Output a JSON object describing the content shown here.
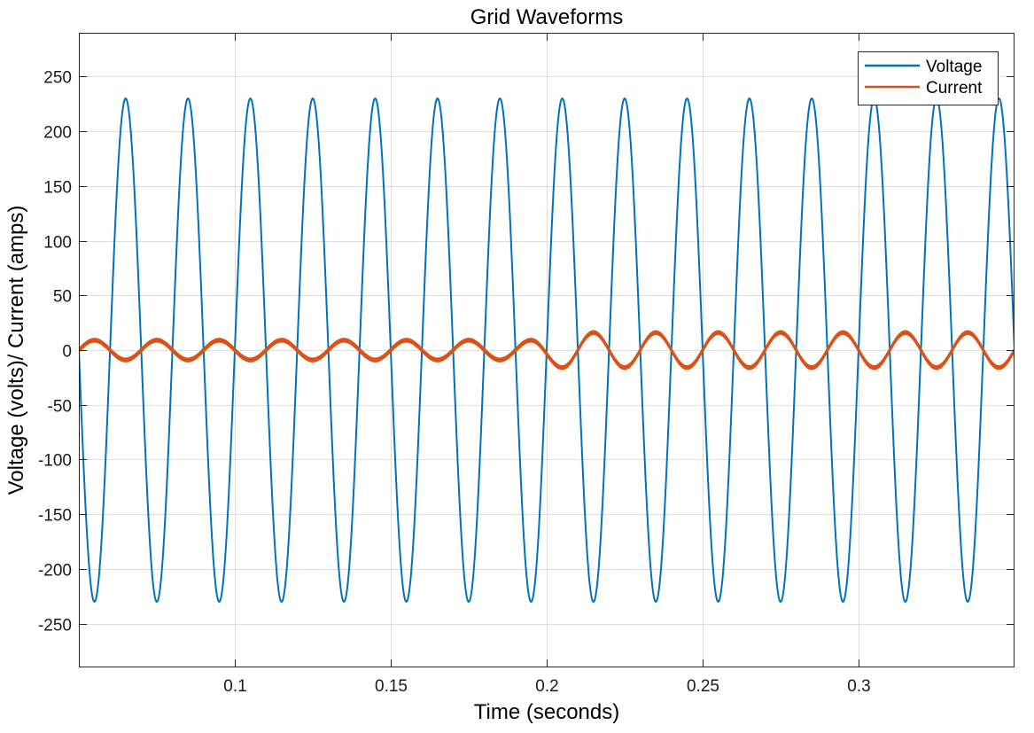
{
  "chart_data": {
    "type": "line",
    "title": "Grid Waveforms",
    "xlabel": "Time (seconds)",
    "ylabel": "Voltage (volts)/ Current (amps)",
    "xlim": [
      0.05,
      0.35
    ],
    "ylim": [
      -290,
      290
    ],
    "xticks": [
      0.1,
      0.15,
      0.2,
      0.25,
      0.3
    ],
    "xtick_labels": [
      "0.1",
      "0.15",
      "0.2",
      "0.25",
      "0.3"
    ],
    "yticks": [
      250,
      200,
      150,
      100,
      50,
      0,
      -50,
      -100,
      -150,
      -200,
      -250
    ],
    "ytick_labels": [
      "250",
      "200",
      "150",
      "100",
      "50",
      "0",
      "-50",
      "-100",
      "-150",
      "-200",
      "-250"
    ],
    "grid": true,
    "legend_position": "top-right",
    "series": [
      {
        "name": "Voltage",
        "color": "#0072BD",
        "frequency_hz": 50,
        "peaks": [
          {
            "x": 0.065,
            "y": 230
          },
          {
            "x": 0.085,
            "y": 230
          },
          {
            "x": 0.105,
            "y": 230
          },
          {
            "x": 0.125,
            "y": 230
          },
          {
            "x": 0.145,
            "y": 230
          },
          {
            "x": 0.165,
            "y": 230
          },
          {
            "x": 0.185,
            "y": 230
          },
          {
            "x": 0.205,
            "y": 230
          },
          {
            "x": 0.225,
            "y": 230
          },
          {
            "x": 0.245,
            "y": 230
          },
          {
            "x": 0.265,
            "y": 230
          },
          {
            "x": 0.285,
            "y": 230
          },
          {
            "x": 0.305,
            "y": 230
          },
          {
            "x": 0.325,
            "y": 230
          },
          {
            "x": 0.345,
            "y": 230
          }
        ],
        "troughs": [
          {
            "x": 0.055,
            "y": -230
          },
          {
            "x": 0.075,
            "y": -230
          },
          {
            "x": 0.095,
            "y": -230
          },
          {
            "x": 0.115,
            "y": -230
          },
          {
            "x": 0.135,
            "y": -230
          },
          {
            "x": 0.155,
            "y": -230
          },
          {
            "x": 0.175,
            "y": -230
          },
          {
            "x": 0.195,
            "y": -230
          },
          {
            "x": 0.215,
            "y": -230
          },
          {
            "x": 0.235,
            "y": -230
          },
          {
            "x": 0.255,
            "y": -230
          },
          {
            "x": 0.275,
            "y": -230
          },
          {
            "x": 0.295,
            "y": -230
          },
          {
            "x": 0.315,
            "y": -230
          },
          {
            "x": 0.335,
            "y": -230
          }
        ]
      },
      {
        "name": "Current",
        "color": "#D95319",
        "frequency_hz": 50,
        "peaks": [
          {
            "x": 0.055,
            "y": 9
          },
          {
            "x": 0.075,
            "y": 9
          },
          {
            "x": 0.095,
            "y": 9
          },
          {
            "x": 0.115,
            "y": 9
          },
          {
            "x": 0.135,
            "y": 9
          },
          {
            "x": 0.155,
            "y": 9
          },
          {
            "x": 0.175,
            "y": 9
          },
          {
            "x": 0.195,
            "y": 9
          },
          {
            "x": 0.215,
            "y": 16
          },
          {
            "x": 0.235,
            "y": 16
          },
          {
            "x": 0.255,
            "y": 16
          },
          {
            "x": 0.275,
            "y": 16
          },
          {
            "x": 0.295,
            "y": 16
          },
          {
            "x": 0.315,
            "y": 16
          },
          {
            "x": 0.335,
            "y": 16
          }
        ],
        "troughs": [
          {
            "x": 0.065,
            "y": -9
          },
          {
            "x": 0.085,
            "y": -9
          },
          {
            "x": 0.105,
            "y": -9
          },
          {
            "x": 0.125,
            "y": -9
          },
          {
            "x": 0.145,
            "y": -9
          },
          {
            "x": 0.165,
            "y": -9
          },
          {
            "x": 0.185,
            "y": -9
          },
          {
            "x": 0.205,
            "y": -16
          },
          {
            "x": 0.225,
            "y": -16
          },
          {
            "x": 0.245,
            "y": -16
          },
          {
            "x": 0.265,
            "y": -16
          },
          {
            "x": 0.285,
            "y": -16
          },
          {
            "x": 0.305,
            "y": -16
          },
          {
            "x": 0.325,
            "y": -16
          },
          {
            "x": 0.345,
            "y": -16
          }
        ],
        "ripple_amplitude": 1.5
      }
    ]
  }
}
